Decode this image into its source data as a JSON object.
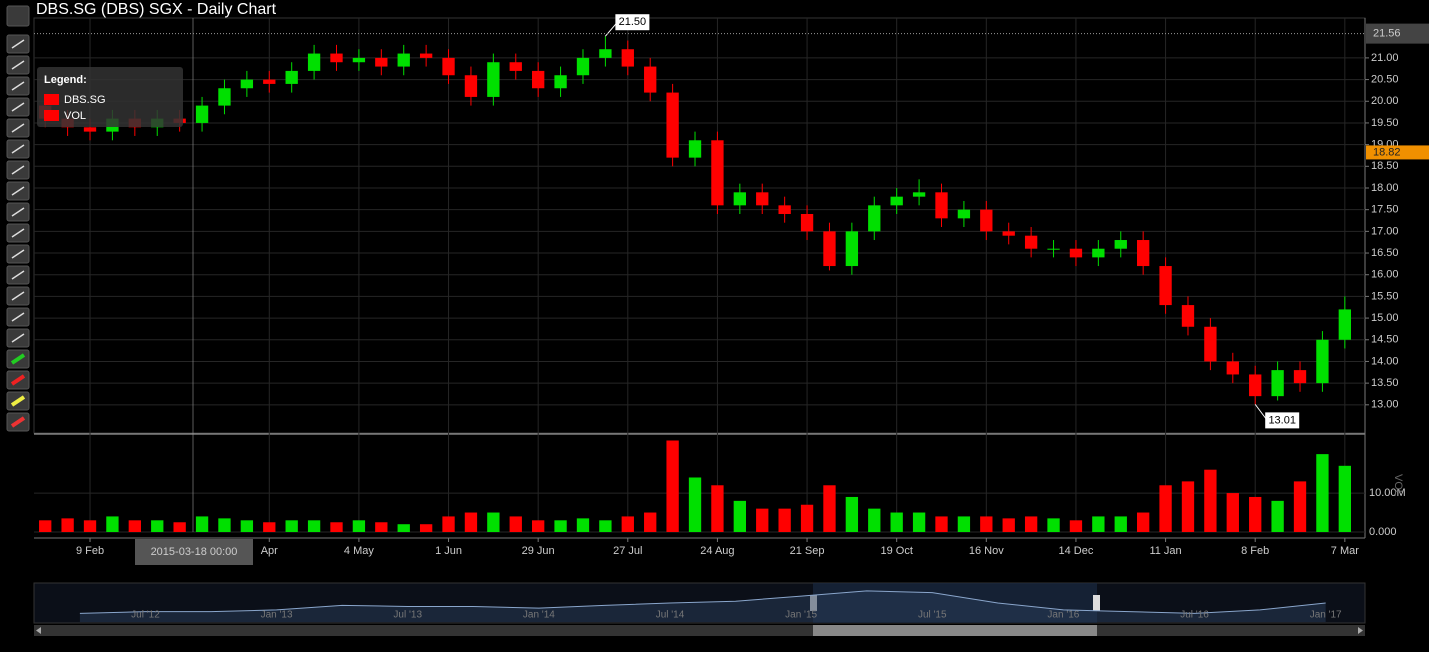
{
  "chart_data": {
    "type": "candlestick",
    "title": "DBS.SG (DBS) SGX - Daily Chart",
    "legend": {
      "title": "Legend:"
    },
    "up_color": "#00e000",
    "down_color": "#ff0000",
    "xlim": [
      -0.5,
      58.9
    ],
    "xticks": [
      {
        "value": 2,
        "label": "9 Feb"
      },
      {
        "value": 10,
        "label": "Apr"
      },
      {
        "value": 14,
        "label": "4 May"
      },
      {
        "value": 18,
        "label": "1 Jun"
      },
      {
        "value": 22,
        "label": "29 Jun"
      },
      {
        "value": 26,
        "label": "27 Jul"
      },
      {
        "value": 30,
        "label": "24 Aug"
      },
      {
        "value": 34,
        "label": "21 Sep"
      },
      {
        "value": 38,
        "label": "19 Oct"
      },
      {
        "value": 42,
        "label": "16 Nov"
      },
      {
        "value": 46,
        "label": "14 Dec"
      },
      {
        "value": 50,
        "label": "11 Jan"
      },
      {
        "value": 54,
        "label": "8 Feb"
      },
      {
        "value": 58,
        "label": "7 Mar"
      }
    ],
    "ylim": [
      12.35,
      21.92
    ],
    "yticks": [
      {
        "value": 13,
        "label": "13.00"
      },
      {
        "value": 13.5,
        "label": "13.50"
      },
      {
        "value": 14,
        "label": "14.00"
      },
      {
        "value": 14.5,
        "label": "14.50"
      },
      {
        "value": 15,
        "label": "15.00"
      },
      {
        "value": 15.5,
        "label": "15.50"
      },
      {
        "value": 16,
        "label": "16.00"
      },
      {
        "value": 16.5,
        "label": "16.50"
      },
      {
        "value": 17,
        "label": "17.00"
      },
      {
        "value": 17.5,
        "label": "17.50"
      },
      {
        "value": 18,
        "label": "18.00"
      },
      {
        "value": 18.5,
        "label": "18.50"
      },
      {
        "value": 19,
        "label": "19.00"
      },
      {
        "value": 19.5,
        "label": "19.50"
      },
      {
        "value": 20,
        "label": "20.00"
      },
      {
        "value": 20.5,
        "label": "20.50"
      },
      {
        "value": 21,
        "label": "21.00"
      }
    ],
    "y2_label": "VOL",
    "y2lim": [
      0,
      24400000
    ],
    "y2ticks": [
      {
        "value": 0,
        "label": "0.000"
      },
      {
        "value": 10000000,
        "label": "10.00M"
      }
    ],
    "grid": true,
    "series": [
      {
        "name": "DBS.SG",
        "open": [
          19.9,
          19.6,
          19.4,
          19.3,
          19.6,
          19.4,
          19.6,
          19.5,
          19.9,
          20.3,
          20.5,
          20.4,
          20.7,
          21.1,
          20.9,
          21.0,
          20.8,
          21.1,
          21.0,
          20.6,
          20.1,
          20.9,
          20.7,
          20.3,
          20.6,
          21.0,
          21.2,
          20.8,
          20.2,
          18.7,
          19.1,
          17.6,
          17.9,
          17.6,
          17.4,
          17.0,
          16.2,
          17.0,
          17.6,
          17.8,
          17.9,
          17.3,
          17.5,
          17.0,
          16.9,
          16.6,
          16.6,
          16.4,
          16.6,
          16.8,
          16.2,
          15.3,
          14.8,
          14.0,
          13.7,
          13.2,
          13.8,
          13.5,
          14.5
        ],
        "high": [
          20.1,
          19.8,
          19.6,
          19.8,
          19.8,
          19.8,
          19.8,
          20.1,
          20.5,
          20.7,
          20.7,
          20.9,
          21.3,
          21.3,
          21.2,
          21.2,
          21.3,
          21.3,
          21.2,
          20.8,
          21.1,
          21.1,
          20.9,
          20.8,
          21.2,
          21.5,
          21.4,
          21.0,
          20.4,
          19.3,
          19.3,
          18.1,
          18.1,
          17.8,
          17.6,
          17.2,
          17.2,
          17.8,
          18.0,
          18.2,
          18.1,
          17.7,
          17.7,
          17.2,
          17.1,
          16.8,
          16.8,
          16.8,
          17.0,
          17.0,
          16.4,
          15.5,
          15.0,
          14.2,
          13.9,
          14.0,
          14.0,
          14.7,
          15.5
        ],
        "low": [
          19.4,
          19.2,
          19.1,
          19.1,
          19.2,
          19.2,
          19.3,
          19.3,
          19.7,
          20.1,
          20.2,
          20.2,
          20.5,
          20.7,
          20.7,
          20.6,
          20.6,
          20.8,
          20.4,
          19.9,
          19.9,
          20.5,
          20.1,
          20.1,
          20.4,
          20.8,
          20.6,
          20.0,
          18.5,
          18.5,
          17.4,
          17.4,
          17.4,
          17.2,
          16.8,
          16.1,
          16.0,
          16.8,
          17.4,
          17.6,
          17.1,
          17.1,
          16.8,
          16.7,
          16.4,
          16.4,
          16.2,
          16.2,
          16.4,
          16.0,
          15.1,
          14.6,
          13.8,
          13.5,
          13.01,
          13.1,
          13.3,
          13.3,
          14.3
        ],
        "close": [
          19.6,
          19.4,
          19.3,
          19.6,
          19.4,
          19.6,
          19.5,
          19.9,
          20.3,
          20.5,
          20.4,
          20.7,
          21.1,
          20.9,
          21.0,
          20.8,
          21.1,
          21.0,
          20.6,
          20.1,
          20.9,
          20.7,
          20.3,
          20.6,
          21.0,
          21.2,
          20.8,
          20.2,
          18.7,
          19.1,
          17.6,
          17.9,
          17.6,
          17.4,
          17.0,
          16.2,
          17.0,
          17.6,
          17.8,
          17.9,
          17.3,
          17.5,
          17.0,
          16.9,
          16.6,
          16.6,
          16.4,
          16.6,
          16.8,
          16.2,
          15.3,
          14.8,
          14.0,
          13.7,
          13.2,
          13.8,
          13.5,
          14.5,
          15.2
        ]
      },
      {
        "name": "VOL",
        "axis": "y2",
        "values": [
          3000000,
          3500000,
          3000000,
          4000000,
          3000000,
          3000000,
          2500000,
          4000000,
          3500000,
          3000000,
          2500000,
          3000000,
          3000000,
          2500000,
          3000000,
          2500000,
          2000000,
          2000000,
          4000000,
          5000000,
          5000000,
          4000000,
          3000000,
          3000000,
          3500000,
          3000000,
          4000000,
          5000000,
          23500000,
          14000000,
          12000000,
          8000000,
          6000000,
          6000000,
          7000000,
          12000000,
          9000000,
          6000000,
          5000000,
          5000000,
          4000000,
          4000000,
          4000000,
          3500000,
          4000000,
          3500000,
          3000000,
          4000000,
          4000000,
          5000000,
          12000000,
          13000000,
          16000000,
          10000000,
          9000000,
          8000000,
          13000000,
          20000000,
          17000000
        ]
      }
    ],
    "annotations": [
      {
        "value": 21.5,
        "label": "21.50"
      },
      {
        "value": 13.01,
        "label": "13.01"
      }
    ],
    "last_price": {
      "value": 18.82,
      "label": "18.82"
    },
    "crosshair": {
      "x_label": "2015-03-18 00:00",
      "y": {
        "value": 21.56,
        "label": "21.56"
      }
    },
    "navigator": {
      "values": [
        14.5,
        15,
        15,
        15.5,
        16.8,
        16.5,
        16.5,
        16,
        16.8,
        17.5,
        18,
        19.5,
        21,
        20.5,
        17.5,
        15.5,
        15,
        14.5,
        15.5,
        17.5
      ],
      "xlim": [
        -0.7,
        19.6
      ],
      "ylim": [
        12,
        23
      ],
      "xticks": [
        {
          "value": 1,
          "label": "Jul '12"
        },
        {
          "value": 3,
          "label": "Jan '13"
        },
        {
          "value": 5,
          "label": "Jul '13"
        },
        {
          "value": 7,
          "label": "Jan '14"
        },
        {
          "value": 9,
          "label": "Jul '14"
        },
        {
          "value": 11,
          "label": "Jan '15"
        },
        {
          "value": 13,
          "label": "Jul '15"
        },
        {
          "value": 15,
          "label": "Jan '16"
        },
        {
          "value": 17,
          "label": "Jul '16"
        },
        {
          "value": 19,
          "label": "Jan '17"
        }
      ]
    }
  }
}
